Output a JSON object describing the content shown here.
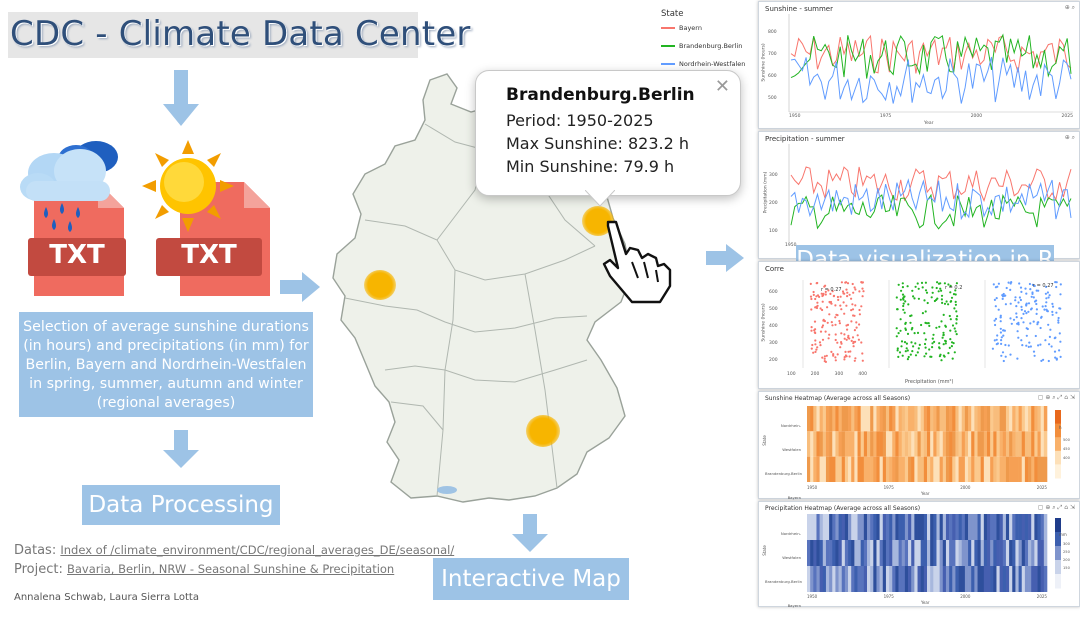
{
  "header": {
    "title": "CDC - Climate Data Center"
  },
  "files": {
    "label1": "TXT",
    "label2": "TXT"
  },
  "selection": {
    "text": "Selection of average sunshine durations (in hours) and precipitations (in mm) for Berlin, Bayern and Nordrhein-Westfalen in spring, summer, autumn and winter (regional averages)"
  },
  "processing": {
    "label": "Data Processing"
  },
  "sources": {
    "datas_label": "Datas:",
    "datas_link": "Index of /climate_environment/CDC/regional_averages_DE/seasonal/",
    "project_label": "Project:",
    "project_link": "Bavaria, Berlin, NRW - Seasonal Sunshine & Precipitation"
  },
  "authors": "Annalena Schwab, Laura Sierra Lotta",
  "map": {
    "label": "Interactive Map"
  },
  "popup": {
    "title": "Brandenburg.Berlin",
    "period": "Period: 1950-2025",
    "max": "Max Sunshine: 823.2 h",
    "min": "Min Sunshine: 79.9 h",
    "close": "✕"
  },
  "viz": {
    "label": "Data visualization in R"
  },
  "legend": {
    "title": "State",
    "items": [
      {
        "name": "Bayern",
        "color": "#f8766d"
      },
      {
        "name": "Brandenburg.Berlin",
        "color": "#22b422"
      },
      {
        "name": "Nordrhein-Westfalen",
        "color": "#619cff"
      }
    ]
  },
  "panels": {
    "sunshine": {
      "title": "Sunshine - summer",
      "ylabel": "Sunshine (hours)",
      "xlabel": "Year",
      "yticks": [
        "800",
        "700",
        "600",
        "500",
        "400"
      ],
      "xticks": [
        "1950",
        "1975",
        "2000",
        "2025"
      ]
    },
    "precip": {
      "title": "Precipitation - summer",
      "ylabel": "Precipitation (mm)",
      "yticks": [
        "300",
        "200",
        "100"
      ],
      "xticks": [
        "1950"
      ]
    },
    "corr": {
      "title": "Corre",
      "xlabel": "Precipitation (mm²)",
      "ylabel": "Sunshine (hours)",
      "r1": "r = 0.27",
      "r2": "r = 0.2",
      "r3": "r = 0.27",
      "yticks": [
        "600",
        "500",
        "400",
        "300",
        "200"
      ],
      "xticks": [
        "100",
        "200",
        "300",
        "400"
      ]
    },
    "heat1": {
      "title": "Sunshine Heatmap (Average across all Seasons)",
      "rows": [
        "Nordrhein-Westfalen",
        "Brandenburg.Berlin",
        "Bayern"
      ],
      "xticks": [
        "1950",
        "1975",
        "2000",
        "2025"
      ],
      "xlabel": "Year",
      "ylabel": "State",
      "legend_title": "h",
      "legend_ticks": [
        "500",
        "450",
        "400"
      ]
    },
    "heat2": {
      "title": "Precipitation Heatmap (Average across all Seasons)",
      "rows": [
        "Nordrhein-Westfalen",
        "Brandenburg.Berlin",
        "Bayern"
      ],
      "xticks": [
        "1950",
        "1975",
        "2000",
        "2025"
      ],
      "xlabel": "Year",
      "ylabel": "State",
      "legend_title": "mm",
      "legend_ticks": [
        "300",
        "250",
        "200",
        "150"
      ]
    }
  },
  "colors": {
    "accent_box": "#9dc3e6",
    "arrow": "#9dc3e6",
    "title_text": "#2f4f7a",
    "file_red": "#ef6b5f",
    "file_dark": "#c24a40",
    "sun_yellow": "#f7b500"
  }
}
